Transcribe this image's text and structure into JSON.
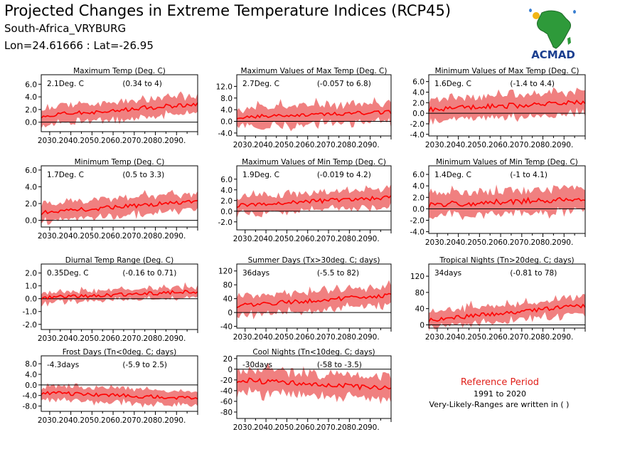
{
  "header": {
    "title": "Projected Changes in Extreme Temperature Indices (RCP45)",
    "location": "South-Africa_VRYBURG",
    "coordinates": "Lon=24.61666 : Lat=-26.95"
  },
  "logo": {
    "text": "ACMAD",
    "icon": "africa-map-logo"
  },
  "reference": {
    "title": "Reference Period",
    "years": "1991 to 2020",
    "note": "Very-Likely-Ranges are written in ( )"
  },
  "colors": {
    "band": "#f08080",
    "line": "#ff0000",
    "zero_line": "#000000",
    "ref_title": "#e0201a"
  },
  "chart_data": [
    {
      "type": "area",
      "title": "Maximum Temp (Deg. C)",
      "mean_label": "2.1Deg. C",
      "range_label": "(0.34 to 4)",
      "x_range": [
        2026,
        2100
      ],
      "ylim": [
        -1.5,
        7.5
      ],
      "yticks": [
        0,
        2,
        4,
        6
      ],
      "tick_labels": [
        "0.0",
        "2.0",
        "4.0",
        "6.0"
      ],
      "trend": [
        1.0,
        2.9
      ],
      "noise": 0.35,
      "band": [
        1.2,
        1.8
      ]
    },
    {
      "type": "area",
      "title": "Maximum Values of Max Temp (Deg. C)",
      "mean_label": "2.7Deg. C",
      "range_label": "(-0.057 to 6.8)",
      "x_range": [
        2026,
        2100
      ],
      "ylim": [
        -5,
        16
      ],
      "yticks": [
        -4,
        0,
        4,
        8,
        12
      ],
      "tick_labels": [
        "-4.0",
        "0.0",
        "4.0",
        "8.0",
        "12.0"
      ],
      "trend": [
        1.5,
        3.2
      ],
      "noise": 0.6,
      "band": [
        2.5,
        5.0
      ]
    },
    {
      "type": "area",
      "title": "Minimum Values of Max Temp (Deg. C)",
      "mean_label": "1.6Deg. C",
      "range_label": "(-1.4 to 4.4)",
      "x_range": [
        2026,
        2100
      ],
      "ylim": [
        -4.3,
        7.3
      ],
      "yticks": [
        -4,
        -2,
        0,
        2,
        4,
        6
      ],
      "tick_labels": [
        "-4.0",
        "-2.0",
        "0.0",
        "2.0",
        "4.0",
        "6.0"
      ],
      "trend": [
        0.8,
        2.0
      ],
      "noise": 0.5,
      "band": [
        2.0,
        2.6
      ]
    },
    {
      "type": "area",
      "title": "Minimum Temp (Deg. C)",
      "mean_label": "1.7Deg. C",
      "range_label": "(0.5 to 3.3)",
      "x_range": [
        2026,
        2100
      ],
      "ylim": [
        -0.8,
        6.5
      ],
      "yticks": [
        0,
        2,
        4,
        6
      ],
      "tick_labels": [
        "0.0",
        "2.0",
        "4.0",
        "6.0"
      ],
      "trend": [
        0.9,
        2.3
      ],
      "noise": 0.25,
      "band": [
        0.9,
        1.4
      ]
    },
    {
      "type": "area",
      "title": "Maximum Values of Min Temp (Deg. C)",
      "mean_label": "1.9Deg. C",
      "range_label": "(-0.019 to 4.2)",
      "x_range": [
        2026,
        2100
      ],
      "ylim": [
        -3.5,
        8.5
      ],
      "yticks": [
        -2,
        0,
        2,
        4,
        6
      ],
      "tick_labels": [
        "-2.0",
        "0.0",
        "2.0",
        "4.0",
        "6.0"
      ],
      "trend": [
        1.1,
        2.6
      ],
      "noise": 0.4,
      "band": [
        1.5,
        2.2
      ]
    },
    {
      "type": "area",
      "title": "Minimum Values of Min Temp (Deg. C)",
      "mean_label": "1.4Deg. C",
      "range_label": "(-1 to 4.1)",
      "x_range": [
        2026,
        2100
      ],
      "ylim": [
        -4.3,
        7.5
      ],
      "yticks": [
        -4,
        -2,
        0,
        2,
        4,
        6
      ],
      "tick_labels": [
        "-4.0",
        "-2.0",
        "0.0",
        "2.0",
        "4.0",
        "6.0"
      ],
      "trend": [
        0.7,
        1.8
      ],
      "noise": 0.5,
      "band": [
        2.0,
        2.6
      ]
    },
    {
      "type": "area",
      "title": "Diurnal Temp Range (Deg. C)",
      "mean_label": "0.35Deg. C",
      "range_label": "(-0.16 to 0.71)",
      "x_range": [
        2026,
        2100
      ],
      "ylim": [
        -2.4,
        2.7
      ],
      "yticks": [
        -2,
        -1,
        0,
        1,
        2
      ],
      "tick_labels": [
        "-2.0",
        "-1.0",
        "0.0",
        "1.0",
        "2.0"
      ],
      "trend": [
        0.1,
        0.55
      ],
      "noise": 0.15,
      "band": [
        0.35,
        0.55
      ]
    },
    {
      "type": "area",
      "title": "Summer Days (Tx>30deg. C; days)",
      "mean_label": "36days",
      "range_label": "(-5.5 to 82)",
      "x_range": [
        2026,
        2100
      ],
      "ylim": [
        -45,
        140
      ],
      "yticks": [
        -40,
        0,
        40,
        80,
        120
      ],
      "tick_labels": [
        "-40",
        "0",
        "40",
        "80",
        "120"
      ],
      "trend": [
        20,
        50
      ],
      "noise": 6,
      "band": [
        25,
        35
      ]
    },
    {
      "type": "area",
      "title": "Tropical Nights (Tn>20deg. C; days)",
      "mean_label": "34days",
      "range_label": "(-0.81 to 78)",
      "x_range": [
        2026,
        2100
      ],
      "ylim": [
        -8,
        150
      ],
      "yticks": [
        0,
        40,
        80,
        120
      ],
      "tick_labels": [
        "0",
        "40",
        "80",
        "120"
      ],
      "trend": [
        12,
        48
      ],
      "noise": 5,
      "band": [
        15,
        30
      ]
    },
    {
      "type": "area",
      "title": "Frost Days (Tn<0deg. C; days)",
      "mean_label": "-4.3days",
      "range_label": "(-5.9 to 2.5)",
      "x_range": [
        2026,
        2100
      ],
      "ylim": [
        -10,
        11
      ],
      "yticks": [
        -8,
        -4,
        0,
        4,
        8
      ],
      "tick_labels": [
        "-8.0",
        "-4.0",
        "0.0",
        "4.0",
        "8.0"
      ],
      "trend": [
        -3.0,
        -5.0
      ],
      "noise": 0.7,
      "band": [
        2.5,
        3.5
      ]
    },
    {
      "type": "area",
      "title": "Cool Nights (Tn<10deg. C; days)",
      "mean_label": "-30days",
      "range_label": "(-58 to -3.5)",
      "x_range": [
        2026,
        2100
      ],
      "ylim": [
        -92,
        25
      ],
      "yticks": [
        -80,
        -60,
        -40,
        -20,
        0,
        20
      ],
      "tick_labels": [
        "-80",
        "-60",
        "-40",
        "-20",
        "0",
        "20"
      ],
      "trend": [
        -20,
        -36
      ],
      "noise": 5,
      "band": [
        18,
        28
      ]
    }
  ],
  "x_tick_labels": [
    "2030.",
    "2040.",
    "2050.",
    "2060.",
    "2070.",
    "2080.",
    "2090."
  ],
  "x_tick_years": [
    2030,
    2040,
    2050,
    2060,
    2070,
    2080,
    2090
  ]
}
